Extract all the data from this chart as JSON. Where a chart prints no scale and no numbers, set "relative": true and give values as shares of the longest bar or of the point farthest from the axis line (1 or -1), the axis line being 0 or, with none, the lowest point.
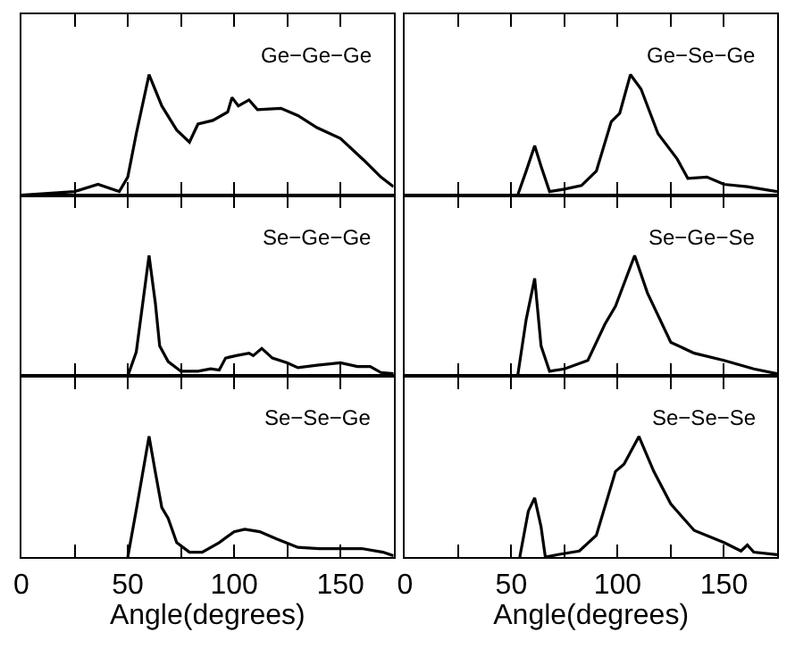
{
  "chart_data": [
    {
      "type": "line",
      "relative": true,
      "color": "#000000",
      "annotations": [
        "Ge−Ge−Ge"
      ],
      "xlim": [
        0,
        175
      ],
      "xticks": [
        0,
        {
          "value": 25,
          "label": null
        },
        50,
        {
          "value": 75,
          "label": null
        },
        100,
        {
          "value": 125,
          "label": null
        },
        150,
        {
          "value": 175,
          "label": null
        }
      ],
      "tick_labels": false,
      "x": [
        0,
        25,
        36,
        46,
        50,
        54,
        60,
        66,
        73,
        79,
        83,
        90,
        97,
        99,
        102,
        107,
        111,
        122,
        130,
        139,
        150,
        161,
        169,
        175
      ],
      "values": [
        0,
        0.03,
        0.09,
        0.03,
        0.15,
        0.51,
        1,
        0.74,
        0.54,
        0.44,
        0.59,
        0.62,
        0.69,
        0.81,
        0.74,
        0.79,
        0.71,
        0.72,
        0.66,
        0.56,
        0.47,
        0.29,
        0.15,
        0.07
      ]
    },
    {
      "type": "line",
      "relative": true,
      "color": "#000000",
      "annotations": [
        "Ge−Se−Ge"
      ],
      "xlim": [
        0,
        175
      ],
      "xticks": [
        0,
        {
          "value": 25,
          "label": null
        },
        50,
        {
          "value": 75,
          "label": null
        },
        100,
        {
          "value": 125,
          "label": null
        },
        150,
        {
          "value": 175,
          "label": null
        }
      ],
      "tick_labels": false,
      "x": [
        53,
        57,
        61,
        64,
        68,
        75,
        83,
        90,
        97,
        101,
        106,
        111,
        119,
        128,
        133,
        142,
        150,
        161,
        175
      ],
      "values": [
        0,
        0.2,
        0.41,
        0.24,
        0.03,
        0.05,
        0.08,
        0.2,
        0.61,
        0.68,
        1,
        0.88,
        0.51,
        0.3,
        0.14,
        0.15,
        0.09,
        0.07,
        0.03
      ]
    },
    {
      "type": "line",
      "relative": true,
      "color": "#000000",
      "annotations": [
        "Se−Ge−Ge"
      ],
      "xlim": [
        0,
        175
      ],
      "xticks": [
        0,
        {
          "value": 25,
          "label": null
        },
        50,
        {
          "value": 75,
          "label": null
        },
        100,
        {
          "value": 125,
          "label": null
        },
        150,
        {
          "value": 175,
          "label": null
        }
      ],
      "tick_labels": false,
      "x": [
        50,
        54,
        57,
        60,
        63,
        65,
        69,
        75,
        83,
        89,
        93,
        96,
        101,
        107,
        109,
        113,
        118,
        125,
        130,
        139,
        150,
        158,
        164,
        169,
        175
      ],
      "values": [
        0,
        0.2,
        0.6,
        1,
        0.6,
        0.25,
        0.12,
        0.04,
        0.04,
        0.06,
        0.05,
        0.15,
        0.17,
        0.19,
        0.17,
        0.23,
        0.15,
        0.11,
        0.07,
        0.09,
        0.11,
        0.08,
        0.08,
        0.03,
        0.02
      ]
    },
    {
      "type": "line",
      "relative": true,
      "color": "#000000",
      "annotations": [
        "Se−Ge−Se"
      ],
      "xlim": [
        0,
        175
      ],
      "xticks": [
        0,
        {
          "value": 25,
          "label": null
        },
        50,
        {
          "value": 75,
          "label": null
        },
        100,
        {
          "value": 125,
          "label": null
        },
        150,
        {
          "value": 175,
          "label": null
        }
      ],
      "tick_labels": false,
      "x": [
        53,
        57,
        61,
        64,
        68,
        75,
        86,
        94,
        99,
        108,
        114,
        125,
        136,
        150,
        164,
        175
      ],
      "values": [
        0,
        0.47,
        0.81,
        0.25,
        0.04,
        0.06,
        0.13,
        0.43,
        0.58,
        1,
        0.69,
        0.28,
        0.19,
        0.13,
        0.06,
        0.02
      ]
    },
    {
      "type": "line",
      "relative": true,
      "color": "#000000",
      "annotations": [
        "Se−Se−Ge"
      ],
      "xlabel": "Angle(degrees)",
      "xlim": [
        0,
        175
      ],
      "xticks": [
        0,
        {
          "value": 25,
          "label": null
        },
        50,
        {
          "value": 75,
          "label": null
        },
        100,
        {
          "value": 125,
          "label": null
        },
        150,
        {
          "value": 175,
          "label": null
        }
      ],
      "tick_labels": "x",
      "x": [
        50,
        54,
        60,
        63,
        66,
        69,
        73,
        79,
        85,
        93,
        100,
        105,
        112,
        120,
        130,
        140,
        150,
        160,
        170,
        175
      ],
      "values": [
        0,
        0.39,
        1,
        0.7,
        0.41,
        0.32,
        0.12,
        0.04,
        0.04,
        0.12,
        0.21,
        0.23,
        0.21,
        0.15,
        0.08,
        0.07,
        0.07,
        0.07,
        0.04,
        0.01
      ]
    },
    {
      "type": "line",
      "relative": true,
      "color": "#000000",
      "annotations": [
        "Se−Se−Se"
      ],
      "xlabel": "Angle(degrees)",
      "xlim": [
        0,
        175
      ],
      "xticks": [
        0,
        {
          "value": 25,
          "label": null
        },
        50,
        {
          "value": 75,
          "label": null
        },
        100,
        {
          "value": 125,
          "label": null
        },
        150,
        {
          "value": 175,
          "label": null
        }
      ],
      "tick_labels": "x",
      "x": [
        54,
        58,
        61,
        64,
        66,
        72,
        82,
        90,
        99,
        103,
        110,
        117,
        125,
        136,
        150,
        158,
        161,
        164,
        175
      ],
      "values": [
        0,
        0.38,
        0.49,
        0.25,
        0,
        0.02,
        0.05,
        0.18,
        0.71,
        0.77,
        1,
        0.71,
        0.44,
        0.22,
        0.12,
        0.05,
        0.1,
        0.04,
        0.02
      ]
    }
  ]
}
